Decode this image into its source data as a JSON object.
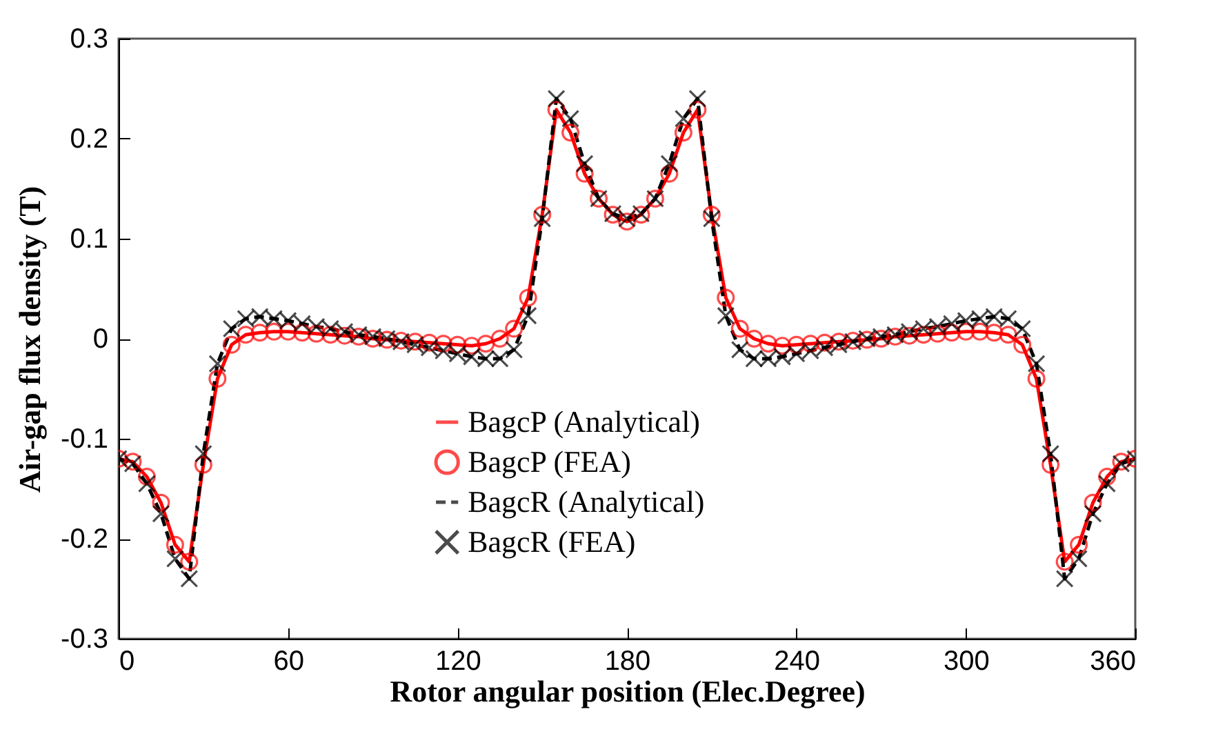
{
  "chart_data": {
    "type": "line",
    "xlabel": "Rotor angular position (Elec.Degree)",
    "ylabel": "Air-gap flux density (T)",
    "x": [
      0,
      5,
      10,
      15,
      20,
      25,
      30,
      35,
      40,
      45,
      50,
      55,
      60,
      65,
      70,
      75,
      80,
      85,
      90,
      95,
      100,
      105,
      110,
      115,
      120,
      125,
      130,
      135,
      140,
      145,
      150,
      155,
      160,
      165,
      170,
      175,
      180,
      185,
      190,
      195,
      200,
      205,
      210,
      215,
      220,
      225,
      230,
      235,
      240,
      245,
      250,
      255,
      260,
      265,
      270,
      275,
      280,
      285,
      290,
      295,
      300,
      305,
      310,
      315,
      320,
      325,
      330,
      335,
      340,
      345,
      350,
      355,
      360
    ],
    "series": [
      {
        "name": "BagcP (Analytical)",
        "type": "line",
        "line_style": "solid",
        "color": "#ff0000",
        "values": [
          -0.12,
          -0.123,
          -0.138,
          -0.164,
          -0.206,
          -0.223,
          -0.126,
          -0.04,
          -0.006,
          0.004,
          0.006,
          0.007,
          0.007,
          0.006,
          0.005,
          0.004,
          0.003,
          0.002,
          0.0,
          -0.001,
          -0.002,
          -0.003,
          -0.004,
          -0.005,
          -0.006,
          -0.007,
          -0.005,
          0.0,
          0.01,
          0.041,
          0.124,
          0.229,
          0.206,
          0.165,
          0.14,
          0.124,
          0.117,
          0.124,
          0.14,
          0.165,
          0.206,
          0.229,
          0.124,
          0.041,
          0.01,
          0.0,
          -0.005,
          -0.007,
          -0.006,
          -0.005,
          -0.004,
          -0.003,
          -0.002,
          -0.001,
          0.0,
          0.002,
          0.003,
          0.004,
          0.005,
          0.006,
          0.007,
          0.007,
          0.006,
          0.004,
          -0.006,
          -0.04,
          -0.126,
          -0.223,
          -0.206,
          -0.164,
          -0.138,
          -0.123,
          -0.12
        ]
      },
      {
        "name": "BagcP (FEA)",
        "type": "scatter",
        "marker": "circle",
        "color": "#ff0000",
        "values": [
          -0.12,
          -0.123,
          -0.138,
          -0.164,
          -0.206,
          -0.223,
          -0.126,
          -0.04,
          -0.006,
          0.004,
          0.006,
          0.007,
          0.007,
          0.006,
          0.005,
          0.004,
          0.003,
          0.002,
          0.0,
          -0.001,
          -0.002,
          -0.003,
          -0.004,
          -0.005,
          -0.006,
          -0.007,
          -0.005,
          0.0,
          0.01,
          0.041,
          0.124,
          0.229,
          0.206,
          0.165,
          0.14,
          0.124,
          0.117,
          0.124,
          0.14,
          0.165,
          0.206,
          0.229,
          0.124,
          0.041,
          0.01,
          0.0,
          -0.005,
          -0.007,
          -0.006,
          -0.005,
          -0.004,
          -0.003,
          -0.002,
          -0.001,
          0.0,
          0.002,
          0.003,
          0.004,
          0.005,
          0.006,
          0.007,
          0.007,
          0.006,
          0.004,
          -0.006,
          -0.04,
          -0.126,
          -0.223,
          -0.206,
          -0.164,
          -0.138,
          -0.123,
          -0.12
        ]
      },
      {
        "name": "BagcR (Analytical)",
        "type": "line",
        "line_style": "dashed",
        "color": "#000000",
        "values": [
          -0.12,
          -0.125,
          -0.145,
          -0.175,
          -0.22,
          -0.24,
          -0.115,
          -0.025,
          0.01,
          0.02,
          0.022,
          0.02,
          0.018,
          0.015,
          0.012,
          0.01,
          0.007,
          0.004,
          0.002,
          0.0,
          -0.003,
          -0.006,
          -0.009,
          -0.012,
          -0.015,
          -0.018,
          -0.02,
          -0.02,
          -0.011,
          0.023,
          0.12,
          0.24,
          0.22,
          0.175,
          0.14,
          0.125,
          0.12,
          0.125,
          0.14,
          0.175,
          0.22,
          0.24,
          0.12,
          0.023,
          -0.011,
          -0.02,
          -0.02,
          -0.018,
          -0.015,
          -0.012,
          -0.009,
          -0.006,
          -0.003,
          0.0,
          0.002,
          0.004,
          0.007,
          0.01,
          0.012,
          0.015,
          0.018,
          0.02,
          0.022,
          0.02,
          0.01,
          -0.025,
          -0.115,
          -0.24,
          -0.22,
          -0.175,
          -0.145,
          -0.125,
          -0.12
        ]
      },
      {
        "name": "BagcR (FEA)",
        "type": "scatter",
        "marker": "cross",
        "color": "#000000",
        "values": [
          -0.12,
          -0.125,
          -0.145,
          -0.175,
          -0.22,
          -0.24,
          -0.115,
          -0.025,
          0.01,
          0.02,
          0.022,
          0.02,
          0.018,
          0.015,
          0.012,
          0.01,
          0.007,
          0.004,
          0.002,
          0.0,
          -0.003,
          -0.006,
          -0.009,
          -0.012,
          -0.015,
          -0.018,
          -0.02,
          -0.02,
          -0.011,
          0.023,
          0.12,
          0.24,
          0.22,
          0.175,
          0.14,
          0.125,
          0.12,
          0.125,
          0.14,
          0.175,
          0.22,
          0.24,
          0.12,
          0.023,
          -0.011,
          -0.02,
          -0.02,
          -0.018,
          -0.015,
          -0.012,
          -0.009,
          -0.006,
          -0.003,
          0.0,
          0.002,
          0.004,
          0.007,
          0.01,
          0.012,
          0.015,
          0.018,
          0.02,
          0.022,
          0.02,
          0.01,
          -0.025,
          -0.115,
          -0.24,
          -0.22,
          -0.175,
          -0.145,
          -0.125,
          -0.12
        ]
      }
    ],
    "xlim": [
      0,
      360
    ],
    "xticks": [
      0,
      60,
      120,
      180,
      240,
      300,
      360
    ],
    "ylim": [
      -0.3,
      0.3
    ],
    "yticks": [
      -0.3,
      -0.2,
      -0.1,
      0,
      0.1,
      0.2,
      0.3
    ],
    "grid": false,
    "legend": "bottom"
  }
}
